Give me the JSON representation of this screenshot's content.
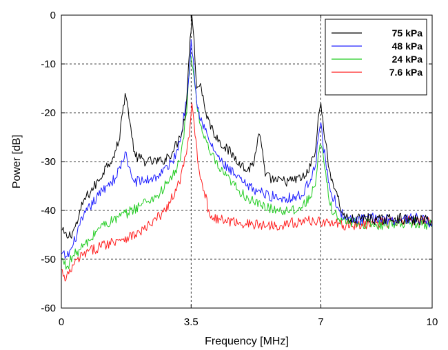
{
  "chart_data": {
    "type": "line",
    "xlabel": "Frequency [MHz]",
    "ylabel": "Power [dB]",
    "xlim": [
      0,
      10
    ],
    "ylim": [
      -60,
      0
    ],
    "x_ticks": [
      0,
      3.5,
      7,
      10
    ],
    "x_tick_labels": [
      "0",
      "3.5",
      "7",
      "10"
    ],
    "y_ticks": [
      0,
      -10,
      -20,
      -30,
      -40,
      -50,
      -60
    ],
    "y_tick_labels": [
      "0",
      "-10",
      "-20",
      "-30",
      "-40",
      "-50",
      "-60"
    ],
    "grid": "dashed",
    "legend_position": "top-right",
    "series": [
      {
        "name": "75 kPa",
        "color": "#000000",
        "points": [
          [
            0,
            -44
          ],
          [
            0.15,
            -45.5
          ],
          [
            0.3,
            -44.5
          ],
          [
            0.45,
            -42
          ],
          [
            0.6,
            -38
          ],
          [
            0.8,
            -36
          ],
          [
            1.0,
            -34
          ],
          [
            1.2,
            -31
          ],
          [
            1.4,
            -29
          ],
          [
            1.55,
            -26
          ],
          [
            1.65,
            -20
          ],
          [
            1.72,
            -16
          ],
          [
            1.8,
            -19
          ],
          [
            1.9,
            -25
          ],
          [
            2.0,
            -29
          ],
          [
            2.3,
            -30
          ],
          [
            2.7,
            -30
          ],
          [
            3.0,
            -28
          ],
          [
            3.2,
            -25
          ],
          [
            3.35,
            -20
          ],
          [
            3.45,
            -8
          ],
          [
            3.52,
            0
          ],
          [
            3.58,
            -5
          ],
          [
            3.65,
            -15
          ],
          [
            3.75,
            -14
          ],
          [
            3.9,
            -20
          ],
          [
            4.1,
            -24
          ],
          [
            4.4,
            -27
          ],
          [
            4.8,
            -30
          ],
          [
            5.0,
            -32
          ],
          [
            5.2,
            -30
          ],
          [
            5.3,
            -25
          ],
          [
            5.38,
            -25.5
          ],
          [
            5.5,
            -33
          ],
          [
            5.8,
            -34
          ],
          [
            6.2,
            -34
          ],
          [
            6.6,
            -33
          ],
          [
            6.85,
            -28
          ],
          [
            6.95,
            -20
          ],
          [
            7.0,
            -18
          ],
          [
            7.05,
            -21
          ],
          [
            7.2,
            -31
          ],
          [
            7.4,
            -36
          ],
          [
            7.6,
            -41
          ],
          [
            7.8,
            -42
          ],
          [
            8.2,
            -41.5
          ],
          [
            8.6,
            -42
          ],
          [
            9.0,
            -41.5
          ],
          [
            9.4,
            -42
          ],
          [
            10,
            -42
          ]
        ]
      },
      {
        "name": "48 kPa",
        "color": "#2020ff",
        "points": [
          [
            0,
            -49
          ],
          [
            0.15,
            -49.5
          ],
          [
            0.3,
            -47.5
          ],
          [
            0.5,
            -43
          ],
          [
            0.7,
            -40
          ],
          [
            1.0,
            -37
          ],
          [
            1.2,
            -35
          ],
          [
            1.45,
            -33.5
          ],
          [
            1.65,
            -30
          ],
          [
            1.72,
            -28
          ],
          [
            1.8,
            -31
          ],
          [
            1.95,
            -34
          ],
          [
            2.2,
            -34
          ],
          [
            2.6,
            -33
          ],
          [
            3.0,
            -30
          ],
          [
            3.2,
            -26
          ],
          [
            3.4,
            -16
          ],
          [
            3.5,
            -5
          ],
          [
            3.56,
            -9
          ],
          [
            3.65,
            -18
          ],
          [
            3.8,
            -22
          ],
          [
            4.0,
            -26
          ],
          [
            4.3,
            -30
          ],
          [
            4.7,
            -33
          ],
          [
            5.0,
            -35
          ],
          [
            5.3,
            -36
          ],
          [
            5.6,
            -37
          ],
          [
            6.0,
            -37.5
          ],
          [
            6.5,
            -37
          ],
          [
            6.85,
            -31
          ],
          [
            6.95,
            -24
          ],
          [
            7.0,
            -22
          ],
          [
            7.05,
            -26
          ],
          [
            7.25,
            -36
          ],
          [
            7.5,
            -40
          ],
          [
            7.7,
            -42
          ],
          [
            8.0,
            -42
          ],
          [
            8.5,
            -41.5
          ],
          [
            9.0,
            -42
          ],
          [
            9.5,
            -41.5
          ],
          [
            10,
            -42.5
          ]
        ]
      },
      {
        "name": "24 kPa",
        "color": "#22cc22",
        "points": [
          [
            0,
            -50
          ],
          [
            0.15,
            -51.5
          ],
          [
            0.3,
            -49.5
          ],
          [
            0.5,
            -48
          ],
          [
            0.8,
            -46
          ],
          [
            1.0,
            -43.5
          ],
          [
            1.4,
            -42
          ],
          [
            1.8,
            -40.5
          ],
          [
            2.2,
            -38.5
          ],
          [
            2.6,
            -37
          ],
          [
            3.0,
            -33
          ],
          [
            3.2,
            -30
          ],
          [
            3.38,
            -20
          ],
          [
            3.48,
            -8
          ],
          [
            3.55,
            -11
          ],
          [
            3.65,
            -18
          ],
          [
            3.8,
            -24
          ],
          [
            4.0,
            -28
          ],
          [
            4.3,
            -32
          ],
          [
            4.8,
            -36
          ],
          [
            5.2,
            -38.5
          ],
          [
            5.6,
            -39.5
          ],
          [
            6.0,
            -40
          ],
          [
            6.5,
            -39.5
          ],
          [
            6.85,
            -35
          ],
          [
            6.95,
            -28
          ],
          [
            7.02,
            -27
          ],
          [
            7.08,
            -30
          ],
          [
            7.25,
            -39
          ],
          [
            7.5,
            -42
          ],
          [
            8.0,
            -42.5
          ],
          [
            8.5,
            -43
          ],
          [
            9.0,
            -42.5
          ],
          [
            9.5,
            -42.5
          ],
          [
            10,
            -43
          ]
        ]
      },
      {
        "name": "7.6 kPa",
        "color": "#ff2020",
        "points": [
          [
            0,
            -52
          ],
          [
            0.1,
            -54.5
          ],
          [
            0.2,
            -53
          ],
          [
            0.35,
            -51
          ],
          [
            0.6,
            -49
          ],
          [
            1.0,
            -47.5
          ],
          [
            1.5,
            -46
          ],
          [
            2.0,
            -45
          ],
          [
            2.4,
            -43
          ],
          [
            2.8,
            -40
          ],
          [
            3.1,
            -36
          ],
          [
            3.3,
            -31
          ],
          [
            3.45,
            -25
          ],
          [
            3.52,
            -18
          ],
          [
            3.58,
            -22
          ],
          [
            3.7,
            -31
          ],
          [
            3.85,
            -36
          ],
          [
            4.0,
            -41
          ],
          [
            4.3,
            -42
          ],
          [
            4.8,
            -42.5
          ],
          [
            5.3,
            -43
          ],
          [
            5.8,
            -43
          ],
          [
            6.3,
            -42.5
          ],
          [
            6.8,
            -42
          ],
          [
            7.2,
            -42.5
          ],
          [
            7.6,
            -43
          ],
          [
            8.0,
            -43
          ],
          [
            8.5,
            -42.5
          ],
          [
            9.0,
            -42.5
          ],
          [
            9.5,
            -42
          ],
          [
            10,
            -42.5
          ]
        ]
      }
    ]
  }
}
